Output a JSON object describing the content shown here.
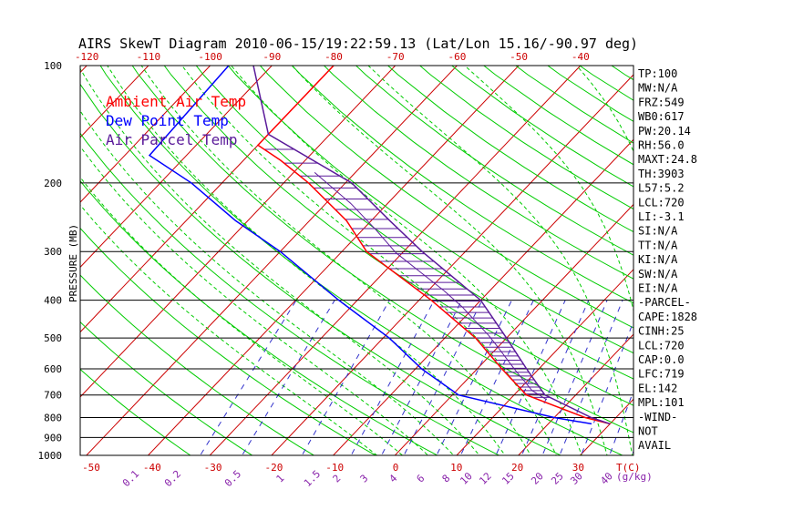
{
  "chart_data": {
    "type": "line",
    "title": "AIRS SkewT Diagram 2010-06-15/19:22:59.13 (Lat/Lon 15.16/-90.97 deg)",
    "ylabel": "PRESSURE (MB)",
    "y_scale": "log",
    "ylim": [
      1000,
      100
    ],
    "xlim_bottom": [
      -50,
      40
    ],
    "pressure_ticks": [
      "100",
      "200",
      "300",
      "400",
      "500",
      "600",
      "700",
      "800",
      "900",
      "1000"
    ],
    "bottom_temp_ticks": [
      "-50",
      "-40",
      "-30",
      "-20",
      "-10",
      "0",
      "10",
      "20",
      "30"
    ],
    "bottom_temp_unit": "T(C)",
    "top_temp_ticks": [
      "-120",
      "-110",
      "-100",
      "-90",
      "-80",
      "-70",
      "-60",
      "-50",
      "-40"
    ],
    "mixing_ratio_ticks": [
      "0.1",
      "0.2",
      "0.5",
      "1",
      "1.5",
      "2",
      "3",
      "4",
      "6",
      "8",
      "10",
      "12",
      "15",
      "20",
      "25",
      "30",
      "40"
    ],
    "mixing_ratio_unit": "(g/kg)",
    "legend": [
      "Ambient Air Temp",
      "Dew Point Temp",
      "Air Parcel Temp"
    ],
    "legend_colors": [
      "#ff0000",
      "#0000ff",
      "#5a1a9a"
    ],
    "series": [
      {
        "name": "Ambient Air Temp",
        "color": "#ff0000",
        "points": [
          {
            "p": 100,
            "t": -80
          },
          {
            "p": 150,
            "t": -80
          },
          {
            "p": 160,
            "t": -80
          },
          {
            "p": 175,
            "t": -74
          },
          {
            "p": 200,
            "t": -66
          },
          {
            "p": 250,
            "t": -54
          },
          {
            "p": 300,
            "t": -46
          },
          {
            "p": 400,
            "t": -28
          },
          {
            "p": 500,
            "t": -15
          },
          {
            "p": 600,
            "t": -6
          },
          {
            "p": 700,
            "t": 2
          },
          {
            "p": 800,
            "t": 15
          },
          {
            "p": 830,
            "t": 20
          }
        ]
      },
      {
        "name": "Dew Point Temp",
        "color": "#0000ff",
        "points": [
          {
            "p": 100,
            "t": -97
          },
          {
            "p": 170,
            "t": -96
          },
          {
            "p": 200,
            "t": -85
          },
          {
            "p": 250,
            "t": -72
          },
          {
            "p": 300,
            "t": -60
          },
          {
            "p": 400,
            "t": -43
          },
          {
            "p": 500,
            "t": -29
          },
          {
            "p": 600,
            "t": -19
          },
          {
            "p": 700,
            "t": -9
          },
          {
            "p": 800,
            "t": 10
          },
          {
            "p": 830,
            "t": 17
          }
        ]
      },
      {
        "name": "Air Parcel Temp",
        "color": "#5a1a9a",
        "points": [
          {
            "p": 100,
            "t": -93
          },
          {
            "p": 150,
            "t": -80
          },
          {
            "p": 200,
            "t": -59
          },
          {
            "p": 250,
            "t": -47
          },
          {
            "p": 300,
            "t": -37
          },
          {
            "p": 400,
            "t": -20
          },
          {
            "p": 500,
            "t": -10
          },
          {
            "p": 600,
            "t": -2
          },
          {
            "p": 700,
            "t": 5
          },
          {
            "p": 800,
            "t": 16
          },
          {
            "p": 830,
            "t": 20
          }
        ]
      }
    ],
    "index_labels": [
      "TP:100",
      "MW:N/A",
      "FRZ:549",
      "WB0:617",
      "PW:20.14",
      "RH:56.0",
      "MAXT:24.8",
      "TH:3903",
      "L57:5.2",
      "LCL:720",
      "LI:-3.1",
      "SI:N/A",
      "TT:N/A",
      "KI:N/A",
      "SW:N/A",
      "EI:N/A",
      "-PARCEL-",
      "CAPE:1828",
      "CINH:25",
      "LCL:720",
      "CAP:0.0",
      "LFC:719",
      "EL:142",
      "MPL:101",
      "-WIND-",
      "NOT",
      "AVAIL"
    ],
    "colors": {
      "isotherm": "#cc0000",
      "dry_adiabat": "#00cc00",
      "moist_adiabat": "#00cc00",
      "mixing_ratio": "#3333cc",
      "isobar": "#000000",
      "cape_hatch": "#5a1a9a"
    }
  }
}
